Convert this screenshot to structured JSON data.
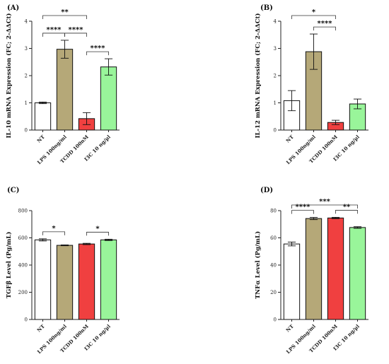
{
  "colors": {
    "NT": "#ffffff",
    "LPS": "#b5a878",
    "TCDD": "#f04040",
    "I3C": "#99f59a",
    "axis": "#222222"
  },
  "chart_data": [
    {
      "panel": "(A)",
      "type": "bar",
      "categories": [
        "NT",
        "LPS 100ng/ml",
        "TCDD 100nM",
        "I3C 10 ng/µl"
      ],
      "values": [
        1.0,
        2.97,
        0.42,
        2.32
      ],
      "errors": [
        0.03,
        0.33,
        0.22,
        0.3
      ],
      "ylabel": "IL-10 mRNA Expression (FC; 2-ΔΔCt)",
      "ylim": [
        0,
        4
      ],
      "yticks": [
        0,
        1,
        2,
        3,
        4
      ],
      "significance": [
        {
          "from": 0,
          "to": 2,
          "label": "**"
        },
        {
          "from": 0,
          "to": 1,
          "label": "****"
        },
        {
          "from": 1,
          "to": 2,
          "label": "****"
        },
        {
          "from": 2,
          "to": 3,
          "label": "****"
        }
      ]
    },
    {
      "panel": "(B)",
      "type": "bar",
      "categories": [
        "NT",
        "LPS 100ng/ml",
        "TCDD 100nM",
        "I3C 10 ng/µl"
      ],
      "values": [
        1.08,
        2.88,
        0.28,
        0.96
      ],
      "errors": [
        0.37,
        0.65,
        0.08,
        0.18
      ],
      "ylabel": "IL-12 mRNA Expression (FC; 2-ΔΔCt)",
      "ylim": [
        0,
        4
      ],
      "yticks": [
        0,
        1,
        2,
        3,
        4
      ],
      "significance": [
        {
          "from": 0,
          "to": 2,
          "label": "*"
        },
        {
          "from": 1,
          "to": 2,
          "label": "****"
        }
      ]
    },
    {
      "panel": "(C)",
      "type": "bar",
      "categories": [
        "NT",
        "LPS 100ng/ml",
        "TCDD 100nM",
        "I3C 10 ng/µl"
      ],
      "values": [
        585,
        545,
        555,
        585
      ],
      "errors": [
        8,
        3,
        5,
        5
      ],
      "ylabel": "TGFβ Level (Pg/mL)",
      "ylim": [
        0,
        800
      ],
      "yticks": [
        0,
        200,
        400,
        600,
        800
      ],
      "significance": [
        {
          "from": 0,
          "to": 1,
          "label": "*"
        },
        {
          "from": 2,
          "to": 3,
          "label": "*"
        }
      ]
    },
    {
      "panel": "(D)",
      "type": "bar",
      "categories": [
        "NT",
        "LPS 100ng/ml",
        "TCDD 100nM",
        "I3C 10 ng/µl"
      ],
      "values": [
        55.5,
        74.2,
        74.6,
        67.6
      ],
      "errors": [
        1.4,
        0.8,
        0.5,
        0.6
      ],
      "ylabel": "TNFα Level (Pg/mL)",
      "ylim": [
        0,
        80
      ],
      "yticks": [
        0,
        20,
        40,
        60,
        80
      ],
      "significance": [
        {
          "from": 0,
          "to": 3,
          "label": "***"
        },
        {
          "from": 0,
          "to": 1,
          "label": "****"
        },
        {
          "from": 2,
          "to": 3,
          "label": "**"
        }
      ]
    }
  ]
}
